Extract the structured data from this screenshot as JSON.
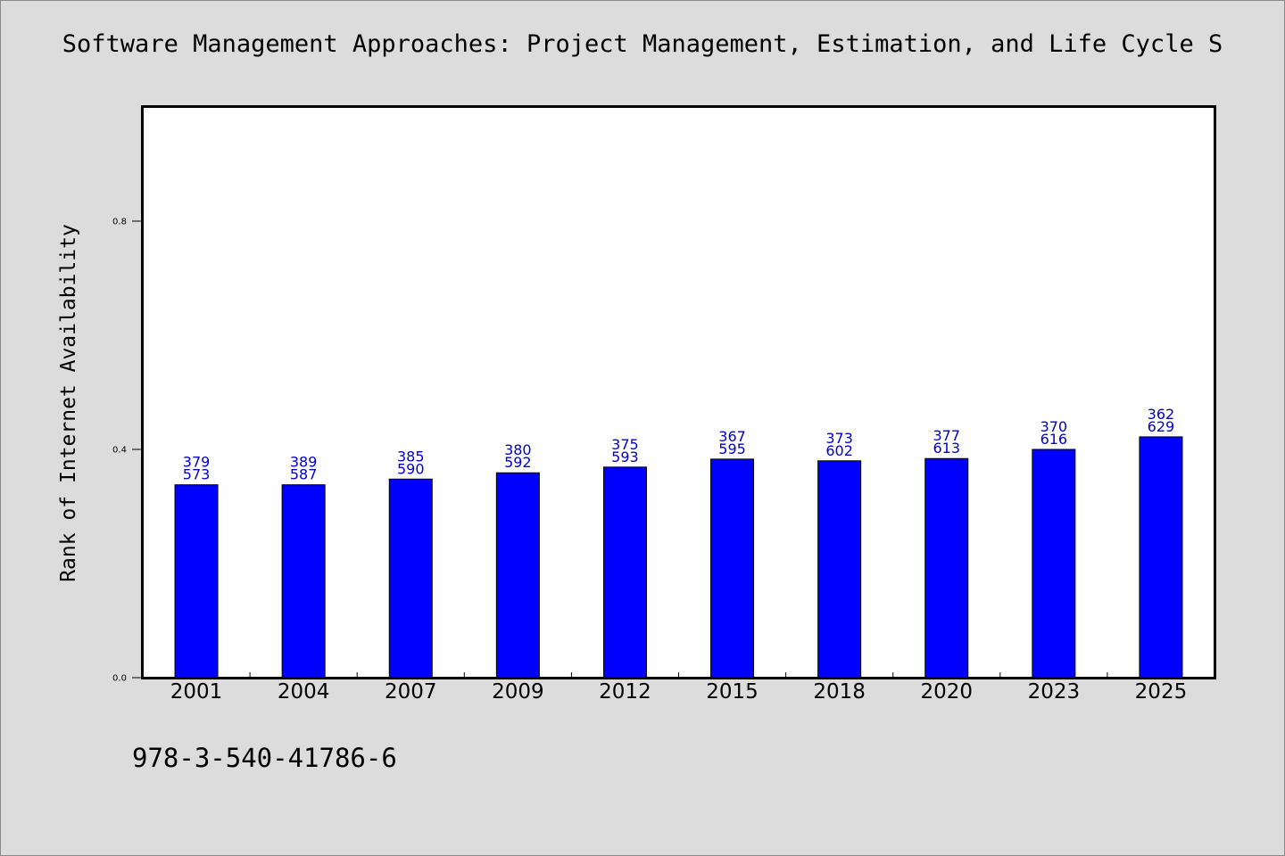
{
  "title": "Software Management Approaches: Project Management, Estimation, and Life Cycle S",
  "footer_text": "978-3-540-41786-6",
  "colors": {
    "background": "#dcdcdc",
    "plot_background": "#ffffff",
    "bar_fill": "#0000ff",
    "value_label": "#0000cc"
  },
  "chart_data": {
    "type": "bar",
    "title": "Software Management Approaches: Project Management, Estimation, and Life Cycle S",
    "xlabel": "",
    "ylabel": "Rank of Internet Availability",
    "ylim": [
      0,
      1.0
    ],
    "yticks": [
      0.0,
      0.4,
      0.8
    ],
    "ytick_labels": [
      "0.0",
      "0.4",
      "0.8"
    ],
    "grid": false,
    "categories": [
      "2001",
      "2004",
      "2007",
      "2009",
      "2012",
      "2015",
      "2018",
      "2020",
      "2023",
      "2025"
    ],
    "values": [
      0.338,
      0.338,
      0.348,
      0.359,
      0.369,
      0.383,
      0.38,
      0.384,
      0.4,
      0.422
    ],
    "data_labels_top": [
      "379",
      "389",
      "385",
      "380",
      "375",
      "367",
      "373",
      "377",
      "370",
      "362"
    ],
    "data_labels_bottom": [
      "573",
      "587",
      "590",
      "592",
      "593",
      "595",
      "602",
      "613",
      "616",
      "629"
    ]
  }
}
